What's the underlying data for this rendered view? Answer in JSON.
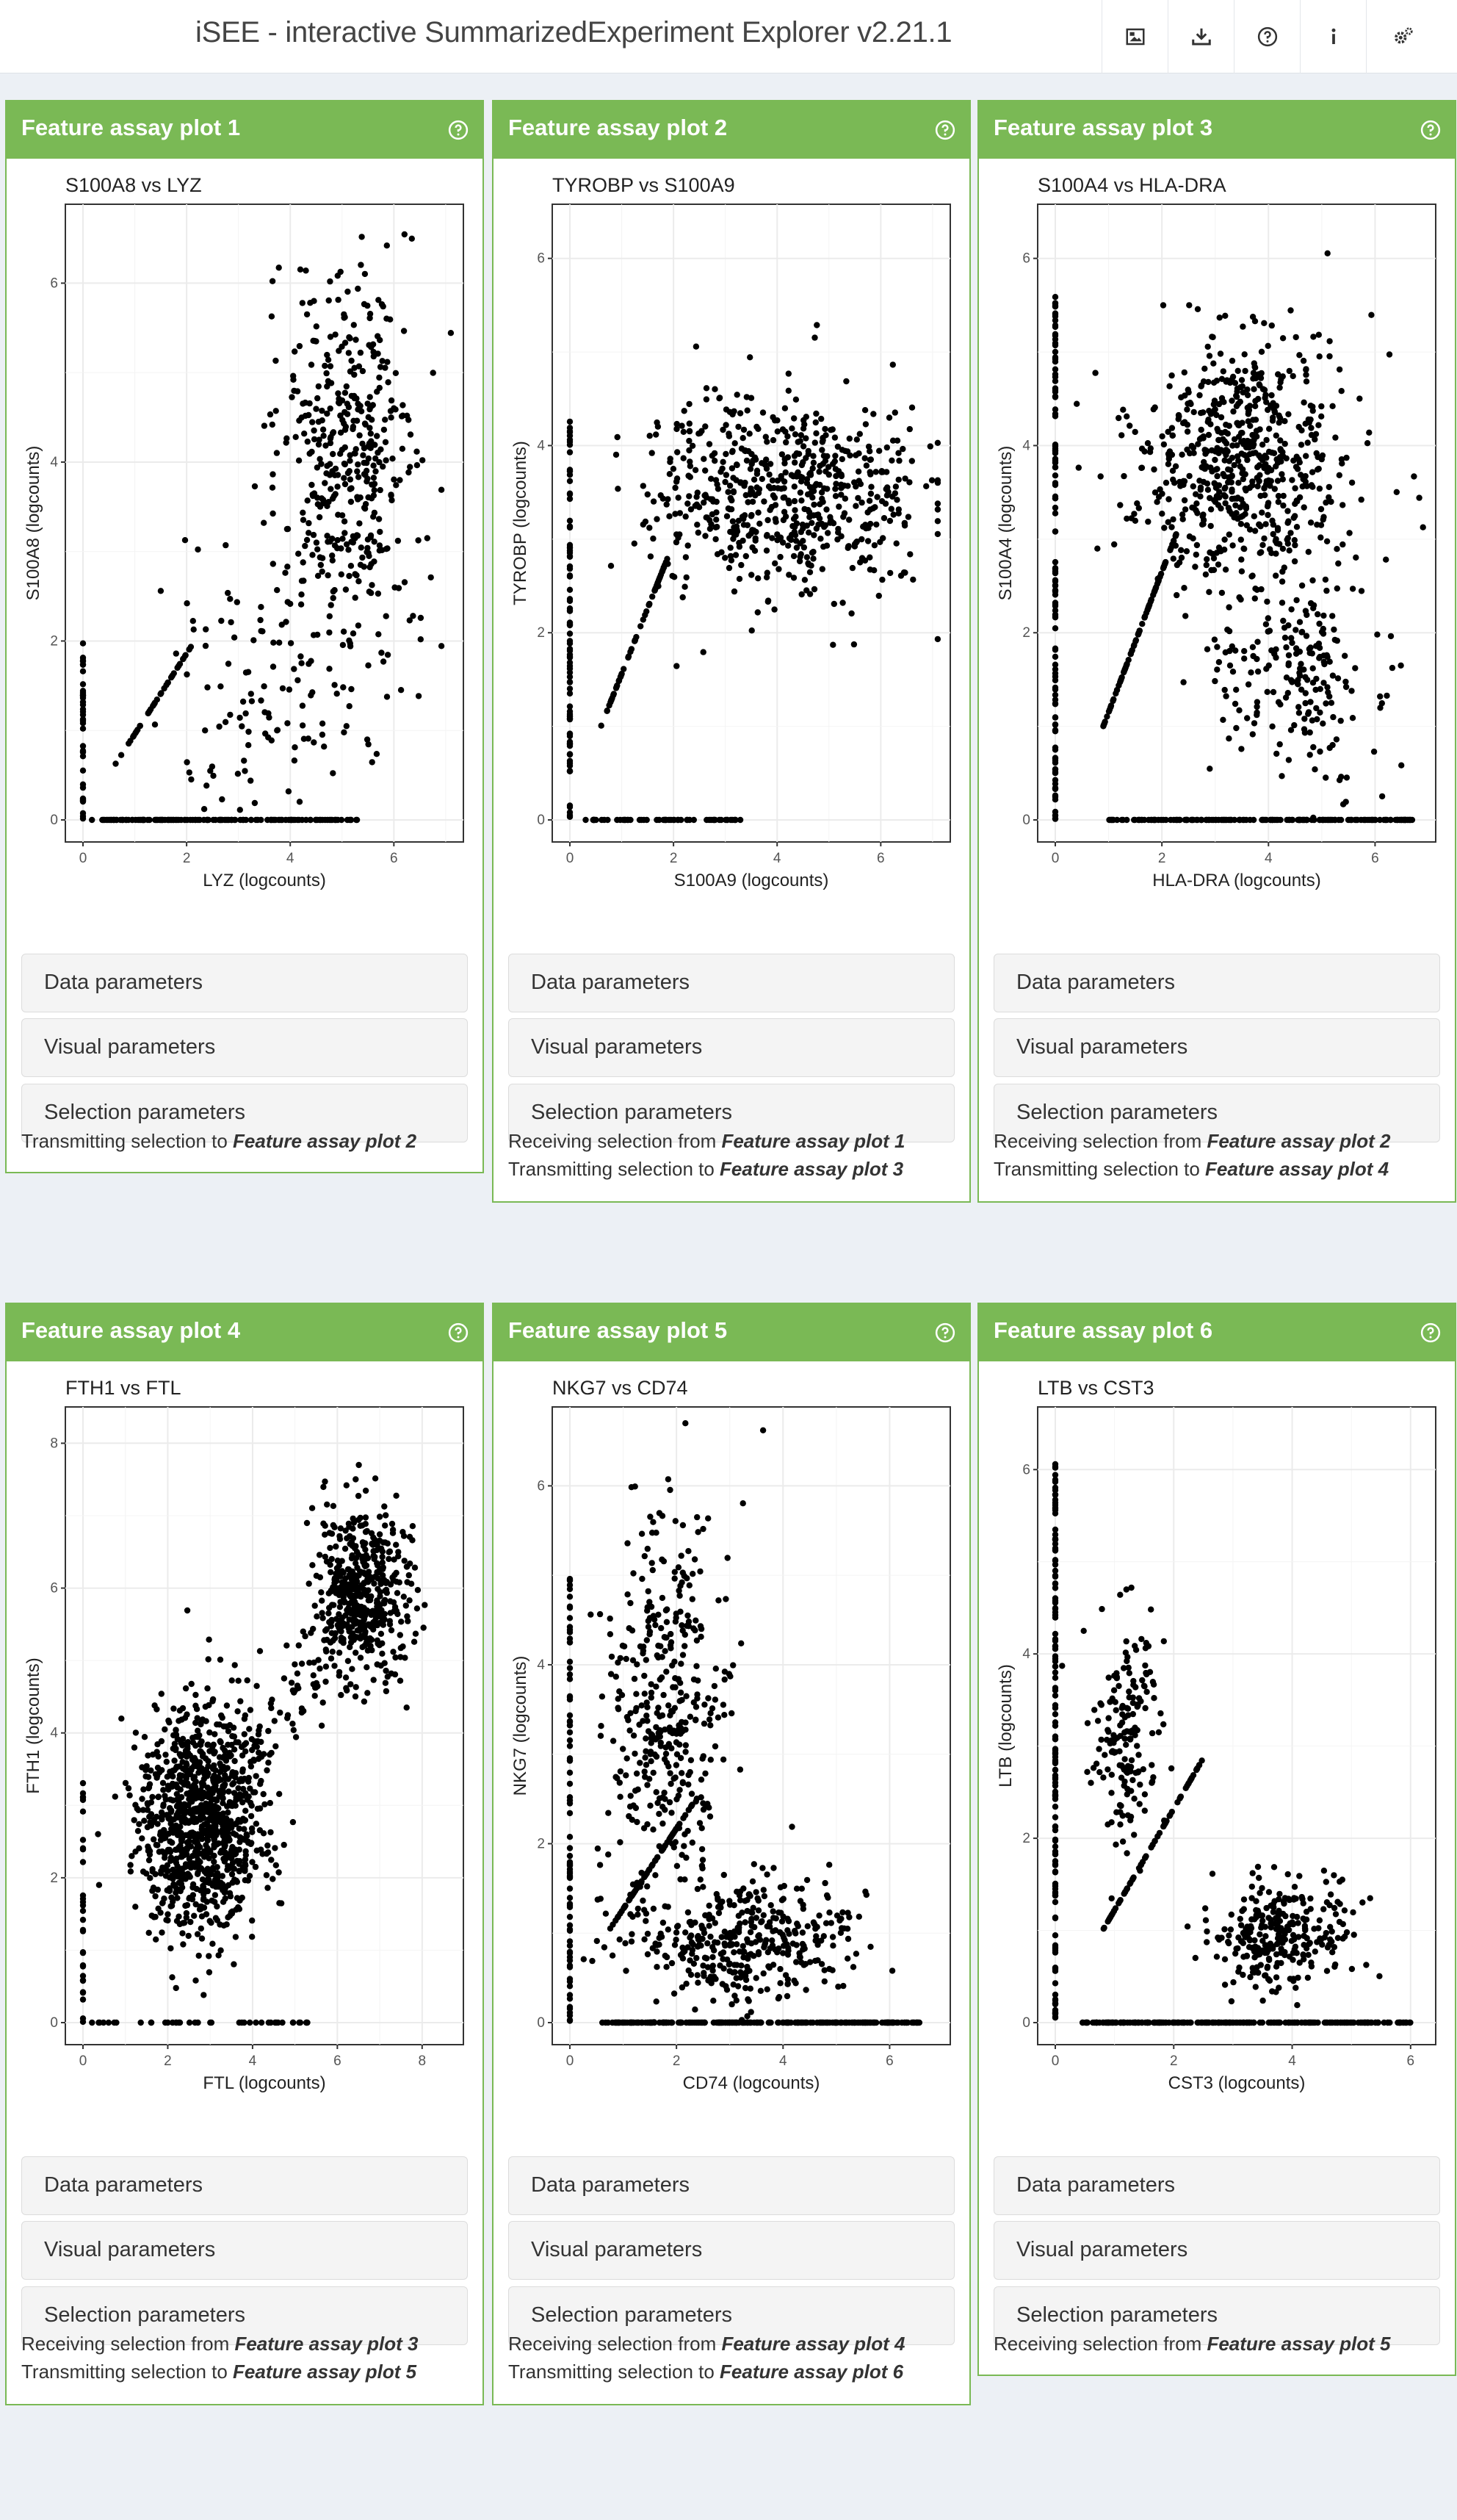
{
  "header": {
    "title": "iSEE - interactive SummarizedExperiment Explorer v2.21.1",
    "buttons": [
      {
        "icon": "image-icon"
      },
      {
        "icon": "download-icon"
      },
      {
        "icon": "question-circle-icon"
      },
      {
        "icon": "info-icon"
      },
      {
        "icon": "gears-icon"
      }
    ]
  },
  "colors": {
    "panel_header": "#7ab955",
    "background": "#ecf0f5"
  },
  "panels": [
    {
      "title": "Feature assay plot 1",
      "plot_title": "S100A8 vs LYZ",
      "xlabel": "LYZ (logcounts)",
      "ylabel": "S100A8 (logcounts)",
      "xticks": [
        "0",
        "2",
        "4",
        "6"
      ],
      "yticks": [
        "0",
        "2",
        "4",
        "6"
      ],
      "sections": [
        "Data parameters",
        "Visual parameters",
        "Selection parameters"
      ],
      "links": [
        {
          "prefix": "Transmitting selection to ",
          "target": "Feature assay plot 2"
        }
      ]
    },
    {
      "title": "Feature assay plot 2",
      "plot_title": "TYROBP vs S100A9",
      "xlabel": "S100A9 (logcounts)",
      "ylabel": "TYROBP (logcounts)",
      "xticks": [
        "0",
        "2",
        "4",
        "6"
      ],
      "yticks": [
        "0",
        "2",
        "4",
        "6"
      ],
      "sections": [
        "Data parameters",
        "Visual parameters",
        "Selection parameters"
      ],
      "links": [
        {
          "prefix": "Receiving selection from ",
          "target": "Feature assay plot 1"
        },
        {
          "prefix": "Transmitting selection to ",
          "target": "Feature assay plot 3"
        }
      ]
    },
    {
      "title": "Feature assay plot 3",
      "plot_title": "S100A4 vs HLA-DRA",
      "xlabel": "HLA-DRA (logcounts)",
      "ylabel": "S100A4 (logcounts)",
      "xticks": [
        "0",
        "2",
        "4",
        "6"
      ],
      "yticks": [
        "0",
        "2",
        "4",
        "6"
      ],
      "sections": [
        "Data parameters",
        "Visual parameters",
        "Selection parameters"
      ],
      "links": [
        {
          "prefix": "Receiving selection from ",
          "target": "Feature assay plot 2"
        },
        {
          "prefix": "Transmitting selection to ",
          "target": "Feature assay plot 4"
        }
      ]
    },
    {
      "title": "Feature assay plot 4",
      "plot_title": "FTH1 vs FTL",
      "xlabel": "FTL (logcounts)",
      "ylabel": "FTH1 (logcounts)",
      "xticks": [
        "0",
        "2",
        "4",
        "6",
        "8"
      ],
      "yticks": [
        "0",
        "2",
        "4",
        "6",
        "8"
      ],
      "sections": [
        "Data parameters",
        "Visual parameters",
        "Selection parameters"
      ],
      "links": [
        {
          "prefix": "Receiving selection from ",
          "target": "Feature assay plot 3"
        },
        {
          "prefix": "Transmitting selection to ",
          "target": "Feature assay plot 5"
        }
      ]
    },
    {
      "title": "Feature assay plot 5",
      "plot_title": "NKG7 vs CD74",
      "xlabel": "CD74 (logcounts)",
      "ylabel": "NKG7 (logcounts)",
      "xticks": [
        "0",
        "2",
        "4",
        "6"
      ],
      "yticks": [
        "0",
        "2",
        "4",
        "6"
      ],
      "sections": [
        "Data parameters",
        "Visual parameters",
        "Selection parameters"
      ],
      "links": [
        {
          "prefix": "Receiving selection from ",
          "target": "Feature assay plot 4"
        },
        {
          "prefix": "Transmitting selection to ",
          "target": "Feature assay plot 6"
        }
      ]
    },
    {
      "title": "Feature assay plot 6",
      "plot_title": "LTB vs CST3",
      "xlabel": "CST3 (logcounts)",
      "ylabel": "LTB (logcounts)",
      "xticks": [
        "0",
        "2",
        "4",
        "6"
      ],
      "yticks": [
        "0",
        "2",
        "4",
        "6"
      ],
      "sections": [
        "Data parameters",
        "Visual parameters",
        "Selection parameters"
      ],
      "links": [
        {
          "prefix": "Receiving selection from ",
          "target": "Feature assay plot 5"
        }
      ]
    }
  ]
}
